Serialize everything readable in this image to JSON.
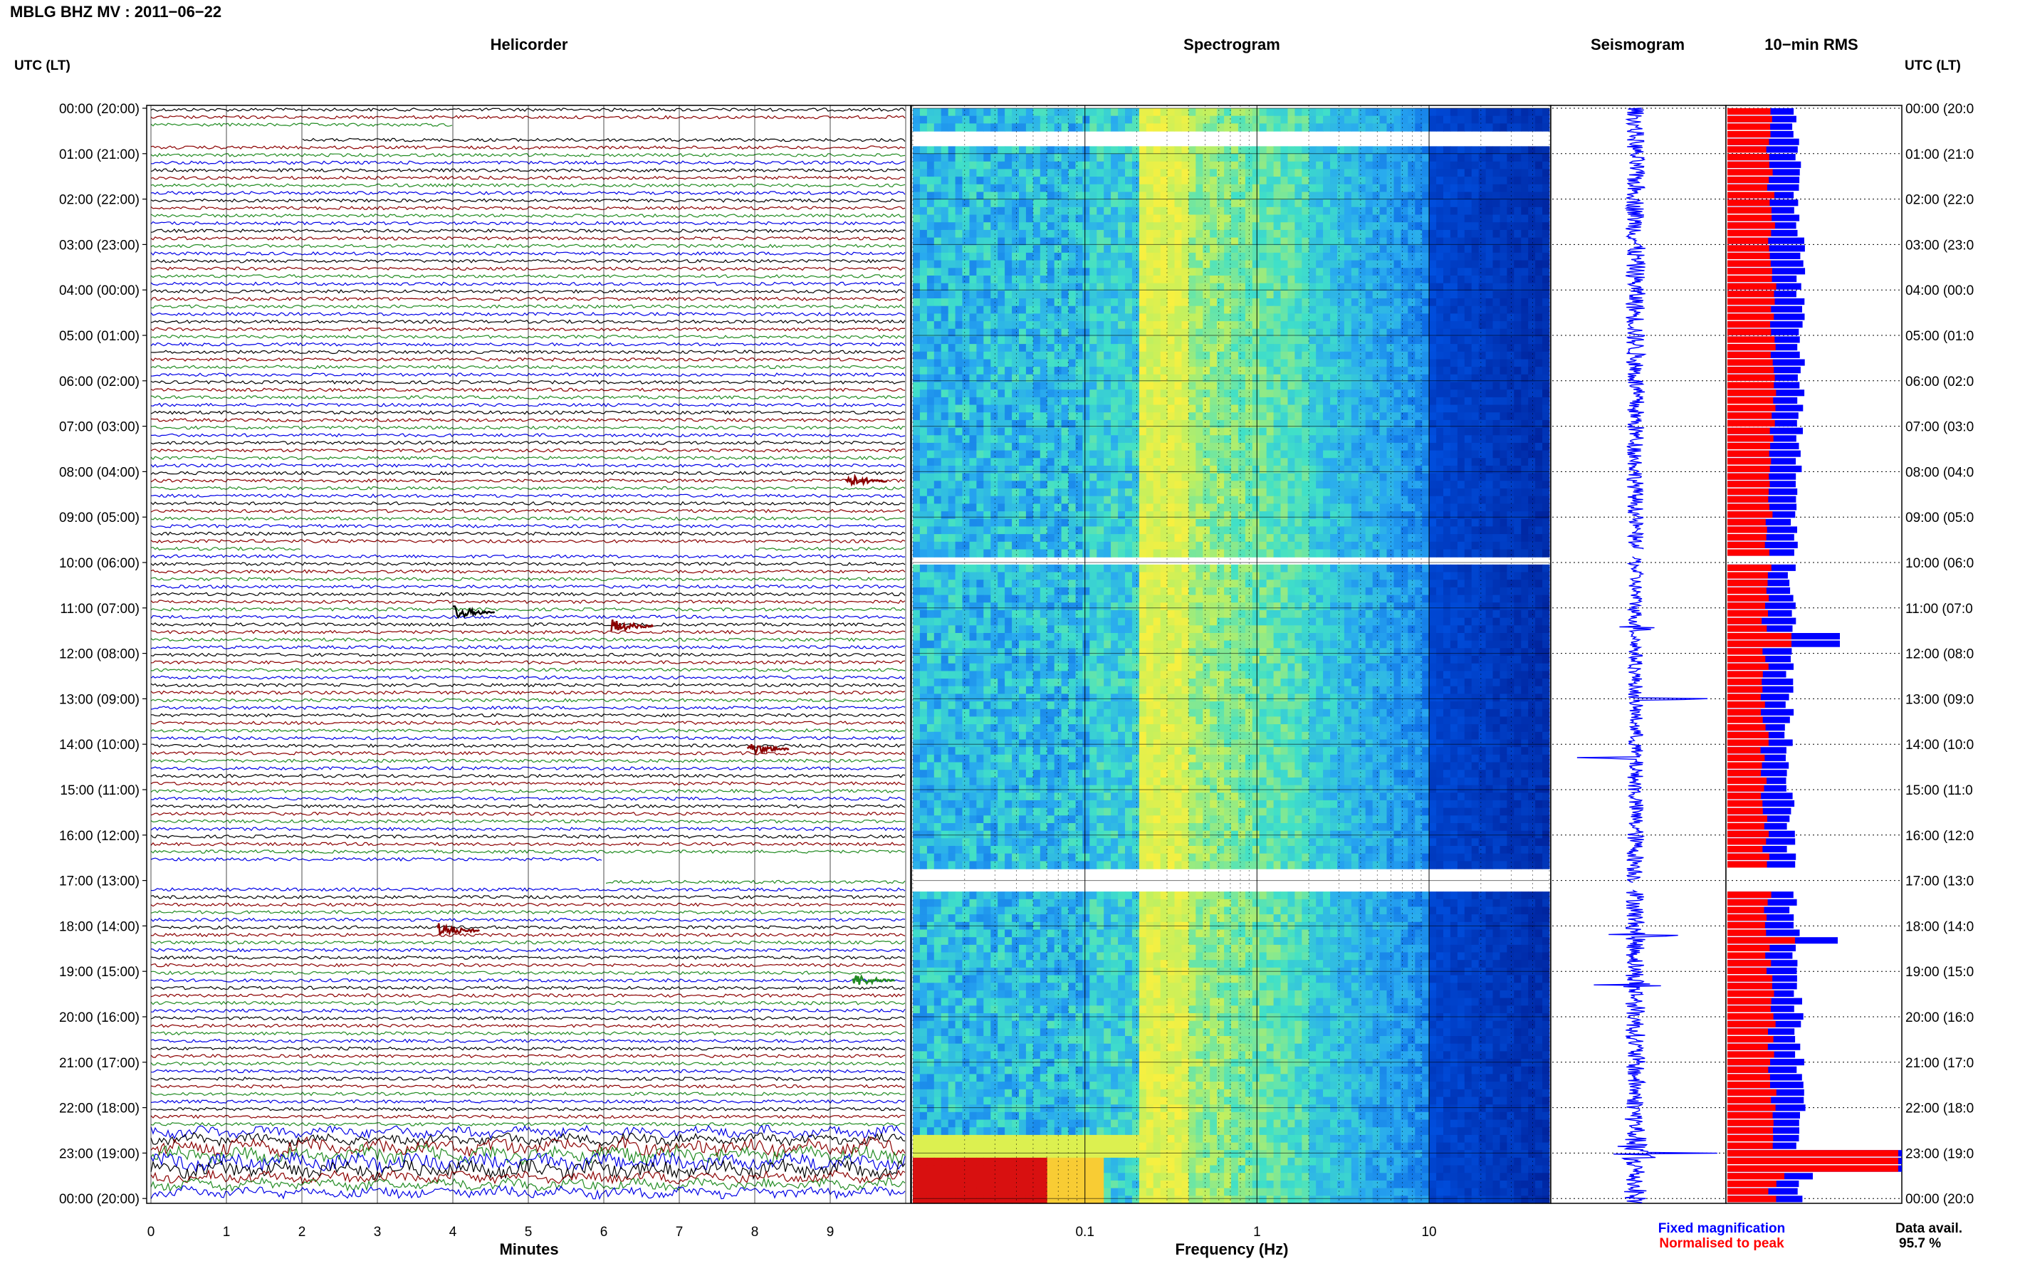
{
  "header": {
    "station_title": "MBLG BHZ MV : 2011−06−22",
    "utc_left": "UTC (LT)",
    "utc_right": "UTC (LT)"
  },
  "panels": {
    "helicorder": "Helicorder",
    "spectrogram": "Spectrogram",
    "seismogram": "Seismogram",
    "rms": "10−min RMS"
  },
  "footer": {
    "minutes_label": "Minutes",
    "frequency_label": "Frequency (Hz)",
    "legend_fixed": "Fixed magnification",
    "legend_normalised": "Normalised to peak",
    "data_avail_label": "Data avail.",
    "data_avail_value": "95.7 %"
  },
  "colors": {
    "trace_cycle": [
      "#000000",
      "#8b0000",
      "#228b22",
      "#0000e6"
    ],
    "fixed_magnification": "#0000ff",
    "normalised_to_peak": "#ff0000",
    "spectro_low": "#0020c8",
    "spectro_mid": "#30c8e0",
    "spectro_high": "#f0f040",
    "spectro_peak": "#e01010"
  },
  "time_labels": [
    "00:00 (20:00)",
    "01:00 (21:00)",
    "02:00 (22:00)",
    "03:00 (23:00)",
    "04:00 (00:00)",
    "05:00 (01:00)",
    "06:00 (02:00)",
    "07:00 (03:00)",
    "08:00 (04:00)",
    "09:00 (05:00)",
    "10:00 (06:00)",
    "11:00 (07:00)",
    "12:00 (08:00)",
    "13:00 (09:00)",
    "14:00 (10:00)",
    "15:00 (11:00)",
    "16:00 (12:00)",
    "17:00 (13:00)",
    "18:00 (14:00)",
    "19:00 (15:00)",
    "20:00 (16:00)",
    "21:00 (17:00)",
    "22:00 (18:00)",
    "23:00 (19:00)",
    "00:00 (20:00)"
  ],
  "time_labels_right": [
    "00:00 (20:0",
    "01:00 (21:0",
    "02:00 (22:0",
    "03:00 (23:0",
    "04:00 (00:0",
    "05:00 (01:0",
    "06:00 (02:0",
    "07:00 (03:0",
    "08:00 (04:0",
    "09:00 (05:0",
    "10:00 (06:0",
    "11:00 (07:0",
    "12:00 (08:0",
    "13:00 (09:0",
    "14:00 (10:0",
    "15:00 (11:0",
    "16:00 (12:0",
    "17:00 (13:0",
    "18:00 (14:0",
    "19:00 (15:0",
    "20:00 (16:0",
    "21:00 (17:0",
    "22:00 (18:0",
    "23:00 (19:0",
    "00:00 (20:0"
  ],
  "chart_data": {
    "type": "heatmap",
    "date": "2011-06-22",
    "station": "MBLG BHZ MV",
    "helicorder": {
      "xlabel": "Minutes",
      "x_ticks": [
        "0",
        "1",
        "2",
        "3",
        "4",
        "5",
        "6",
        "7",
        "8",
        "9"
      ],
      "xlim": [
        0,
        10
      ],
      "rows_per_hour": 6,
      "hours": 24,
      "gaps_hours": [
        [
          0.4,
          0.7
        ],
        [
          9.7,
          9.8
        ],
        [
          16.6,
          17.1
        ]
      ],
      "events": [
        {
          "hour": 11.1,
          "minute": 4.0,
          "color": "#000000"
        },
        {
          "hour": 11.4,
          "minute": 6.1,
          "color": "#8b0000"
        },
        {
          "hour": 14.1,
          "minute": 7.9,
          "color": "#8b0000"
        },
        {
          "hour": 18.1,
          "minute": 3.8,
          "color": "#8b0000"
        },
        {
          "hour": 19.2,
          "minute": 9.3,
          "color": "#228b22"
        },
        {
          "hour": 8.2,
          "minute": 9.2,
          "color": "#8b0000"
        }
      ]
    },
    "spectrogram": {
      "xlabel": "Frequency (Hz)",
      "x_scale": "log",
      "xlim": [
        0.01,
        50
      ],
      "x_ticks": [
        "0.1",
        "1",
        "10"
      ],
      "low_freq_hot_hours": [
        22.9,
        23.9
      ]
    },
    "seismogram": {
      "events_hours": [
        11.45,
        13.0,
        14.3,
        18.2,
        19.3,
        23.0
      ]
    },
    "rms": {
      "title": "10−min RMS",
      "peak_hours": [
        11.5,
        18.1,
        23.0
      ],
      "legend": [
        "Fixed magnification",
        "Normalised to peak"
      ]
    },
    "data_availability_percent": 95.7
  }
}
